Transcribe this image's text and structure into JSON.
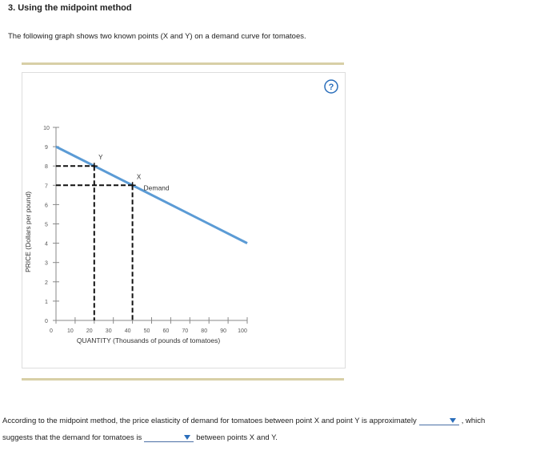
{
  "header": {
    "title": "3. Using the midpoint method"
  },
  "intro": "The following graph shows two known points (X and Y) on a demand curve for tomatoes.",
  "help": "?",
  "chart_data": {
    "type": "line",
    "x_label": "QUANTITY (Thousands of pounds of tomatoes)",
    "y_label": "PRICE (Dollars per pound)",
    "xlim": [
      0,
      100
    ],
    "ylim": [
      0,
      10
    ],
    "xticks": [
      0,
      10,
      20,
      30,
      40,
      50,
      60,
      70,
      80,
      90,
      100
    ],
    "yticks": [
      0,
      1,
      2,
      3,
      4,
      5,
      6,
      7,
      8,
      9,
      10
    ],
    "series": [
      {
        "name": "Demand",
        "color": "#5b9bd5",
        "x": [
          0,
          100
        ],
        "values": [
          9,
          4
        ]
      }
    ],
    "points": [
      {
        "label": "Y",
        "x": 20,
        "y": 8
      },
      {
        "label": "X",
        "x": 40,
        "y": 7
      }
    ]
  },
  "question": {
    "part1": "According to the midpoint method, the price elasticity of demand for tomatoes between point X and point Y is approximately",
    "part2": ", which",
    "part3": "suggests that the demand for tomatoes is",
    "part4": "between points X and Y."
  }
}
